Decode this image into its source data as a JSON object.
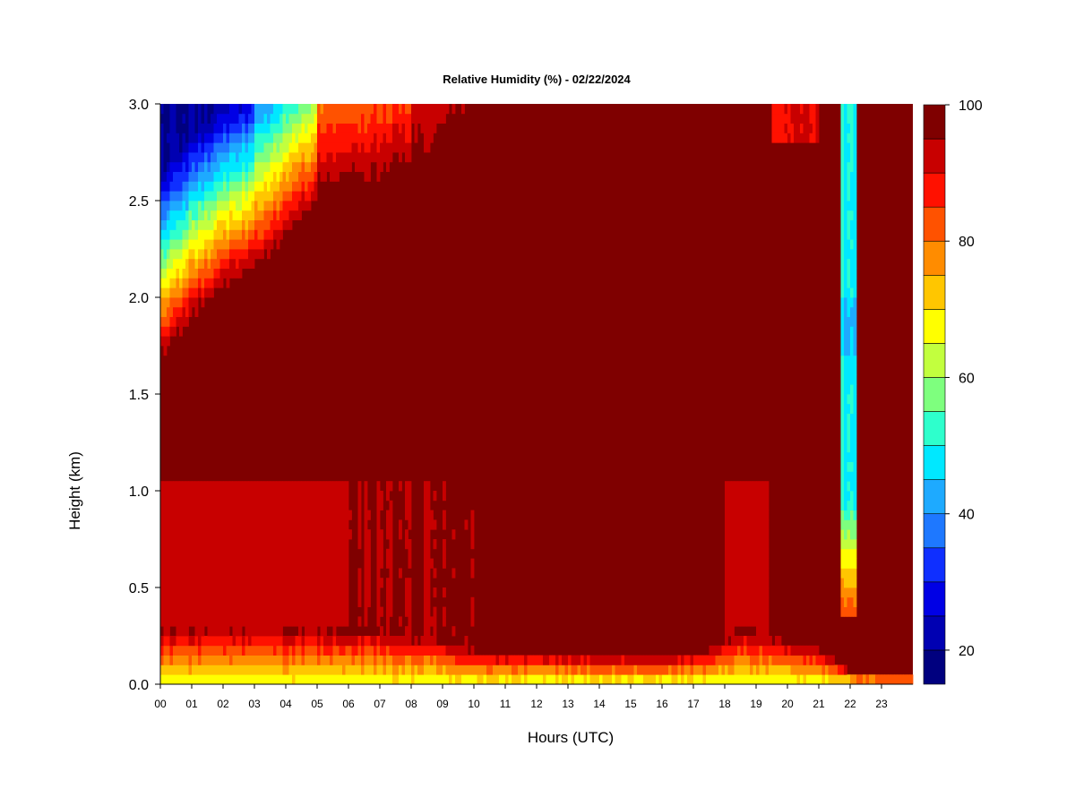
{
  "chart_data": {
    "type": "heatmap",
    "title": "Relative Humidity (%) - 02/22/2024",
    "xlabel": "Hours (UTC)",
    "ylabel": "Height (km)",
    "x_ticks": [
      "00",
      "01",
      "02",
      "03",
      "04",
      "05",
      "06",
      "07",
      "08",
      "09",
      "10",
      "11",
      "12",
      "13",
      "14",
      "15",
      "16",
      "17",
      "18",
      "19",
      "20",
      "21",
      "22",
      "23"
    ],
    "y_ticks": [
      "0.0",
      "0.5",
      "1.0",
      "1.5",
      "2.0",
      "2.5",
      "3.0"
    ],
    "xlim": [
      0,
      24
    ],
    "ylim": [
      0,
      3.0
    ],
    "colorbar": {
      "range": [
        15,
        100
      ],
      "labels": [
        "20",
        "40",
        "60",
        "80",
        "100"
      ],
      "label_values": [
        20,
        40,
        60,
        80,
        100
      ],
      "levels": [
        15,
        20,
        25,
        30,
        35,
        40,
        45,
        50,
        55,
        60,
        65,
        70,
        75,
        80,
        85,
        90,
        95,
        100
      ],
      "colors": [
        "#00007F",
        "#0000B2",
        "#0000E5",
        "#0F2FFF",
        "#1E78FF",
        "#1EAAFF",
        "#00E8FF",
        "#2EFFCC",
        "#7EFF7E",
        "#C2FF3E",
        "#FFFF00",
        "#FFC600",
        "#FF8C00",
        "#FF5200",
        "#FF1100",
        "#C80000",
        "#7F0000"
      ]
    },
    "features": [
      {
        "desc": "near-saturated layer (~100%) dominating 0.2-2.5 km through most of the day"
      },
      {
        "desc": "dry air aloft (20-50%) above ~1.8 km from 00 to 05 UTC, moistening through the day"
      },
      {
        "desc": "narrow column of drier air (45-70%) around 22 UTC from ~0.4 km up to 3.0 km"
      },
      {
        "desc": "surface layer drier (65-85%) below ~0.1 km"
      }
    ]
  }
}
